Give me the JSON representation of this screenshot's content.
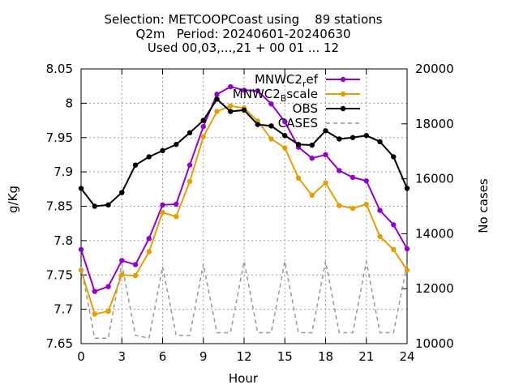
{
  "chart_data": {
    "type": "line",
    "title_lines": [
      "Selection: METCOOPCoast using    89 stations",
      "Q2m   Period: 20240601-20240630",
      "Used 00,03,...,21 + 00 01 ... 12"
    ],
    "xlabel": "Hour",
    "ylabel": "g/Kg",
    "y2label": "No cases",
    "xlim": [
      0,
      24
    ],
    "ylim": [
      7.65,
      8.05
    ],
    "y2lim": [
      10000,
      20000
    ],
    "x_ticks": [
      0,
      3,
      6,
      9,
      12,
      15,
      18,
      21,
      24
    ],
    "y_ticks": [
      "7.65",
      "7.7",
      "7.75",
      "7.8",
      "7.85",
      "7.9",
      "7.95",
      "8",
      "8.05"
    ],
    "y2_ticks": [
      "10000",
      "12000",
      "14000",
      "16000",
      "18000",
      "20000"
    ],
    "grid": true,
    "legend_position": "top-right",
    "x": [
      0,
      1,
      2,
      3,
      4,
      5,
      6,
      7,
      8,
      9,
      10,
      11,
      12,
      13,
      14,
      15,
      16,
      17,
      18,
      19,
      20,
      21,
      22,
      23,
      24
    ],
    "series": [
      {
        "name": "MNWC2_ref",
        "legend_main": "MNWC2",
        "legend_sub": "r",
        "legend_tail": "ef",
        "color": "#9400D3",
        "axis": "y",
        "style": "solid",
        "values": [
          7.787,
          7.726,
          7.733,
          7.771,
          7.765,
          7.803,
          7.852,
          7.853,
          7.91,
          7.966,
          8.013,
          8.024,
          8.019,
          8.018,
          7.999,
          7.973,
          7.936,
          7.92,
          7.925,
          7.902,
          7.892,
          7.887,
          7.844,
          7.823,
          7.788
        ]
      },
      {
        "name": "MNWC2_Bscale",
        "legend_main": "MNWC2",
        "legend_sub": "B",
        "legend_tail": "scale",
        "color": "#E69F00",
        "axis": "y",
        "style": "solid",
        "values": [
          7.757,
          7.693,
          7.697,
          7.75,
          7.749,
          7.784,
          7.841,
          7.835,
          7.886,
          7.951,
          7.988,
          7.996,
          7.993,
          7.974,
          7.948,
          7.935,
          7.891,
          7.866,
          7.884,
          7.851,
          7.847,
          7.853,
          7.806,
          7.787,
          7.757
        ]
      },
      {
        "name": "OBS",
        "legend_main": "OBS",
        "legend_sub": "",
        "legend_tail": "",
        "color": "#000000",
        "axis": "y",
        "style": "solid",
        "values": [
          7.876,
          7.85,
          7.852,
          7.87,
          7.91,
          7.922,
          7.931,
          7.94,
          7.957,
          7.975,
          8.006,
          7.988,
          7.99,
          7.969,
          7.967,
          7.953,
          7.94,
          7.939,
          7.96,
          7.948,
          7.95,
          7.953,
          7.944,
          7.922,
          7.876
        ]
      },
      {
        "name": "CASES",
        "legend_main": "CASES",
        "legend_sub": "",
        "legend_tail": "",
        "color": "#999999",
        "axis": "y2",
        "style": "dashed",
        "values": [
          12800,
          10200,
          10200,
          12900,
          10300,
          10200,
          12800,
          10300,
          10300,
          12900,
          10400,
          10400,
          13000,
          10400,
          10400,
          13000,
          10400,
          10400,
          13000,
          10400,
          10400,
          13000,
          10400,
          10400,
          12900
        ]
      }
    ]
  }
}
